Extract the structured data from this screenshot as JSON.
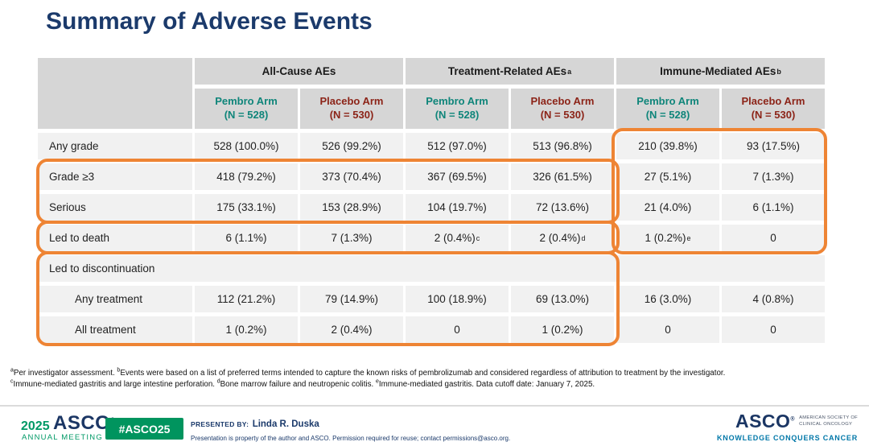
{
  "title": "Summary of Adverse Events",
  "table": {
    "groups": [
      {
        "label": "All-Cause AEs",
        "sup": ""
      },
      {
        "label": "Treatment-Related AEs",
        "sup": "a"
      },
      {
        "label": "Immune-Mediated AEs",
        "sup": "b"
      }
    ],
    "arms": [
      {
        "label": "Pembro Arm",
        "n": "(N = 528)",
        "tone": "pembro"
      },
      {
        "label": "Placebo Arm",
        "n": "(N = 530)",
        "tone": "placebo"
      },
      {
        "label": "Pembro Arm",
        "n": "(N = 528)",
        "tone": "pembro"
      },
      {
        "label": "Placebo Arm",
        "n": "(N = 530)",
        "tone": "placebo"
      },
      {
        "label": "Pembro Arm",
        "n": "(N = 528)",
        "tone": "pembro"
      },
      {
        "label": "Placebo Arm",
        "n": "(N = 530)",
        "tone": "placebo"
      }
    ],
    "rows": [
      {
        "label": "Any grade",
        "cells": [
          {
            "v": "528 (100.0%)"
          },
          {
            "v": "526 (99.2%)"
          },
          {
            "v": "512 (97.0%)"
          },
          {
            "v": "513 (96.8%)"
          },
          {
            "v": "210 (39.8%)"
          },
          {
            "v": "93 (17.5%)"
          }
        ]
      },
      {
        "label": "Grade ≥3",
        "cells": [
          {
            "v": "418 (79.2%)"
          },
          {
            "v": "373 (70.4%)"
          },
          {
            "v": "367 (69.5%)"
          },
          {
            "v": "326 (61.5%)"
          },
          {
            "v": "27 (5.1%)"
          },
          {
            "v": "7 (1.3%)"
          }
        ]
      },
      {
        "label": "Serious",
        "cells": [
          {
            "v": "175 (33.1%)"
          },
          {
            "v": "153 (28.9%)"
          },
          {
            "v": "104 (19.7%)"
          },
          {
            "v": "72 (13.6%)"
          },
          {
            "v": "21 (4.0%)"
          },
          {
            "v": "6 (1.1%)"
          }
        ]
      },
      {
        "label": "Led to death",
        "cells": [
          {
            "v": "6 (1.1%)"
          },
          {
            "v": "7 (1.3%)"
          },
          {
            "v": "2 (0.4%)",
            "sup": "c"
          },
          {
            "v": "2 (0.4%)",
            "sup": "d"
          },
          {
            "v": "1 (0.2%)",
            "sup": "e"
          },
          {
            "v": "0"
          }
        ]
      },
      {
        "label": "Led to discontinuation",
        "span": true,
        "cells": []
      },
      {
        "label": "Any treatment",
        "indent": true,
        "cells": [
          {
            "v": "112 (21.2%)"
          },
          {
            "v": "79 (14.9%)"
          },
          {
            "v": "100 (18.9%)"
          },
          {
            "v": "69 (13.0%)"
          },
          {
            "v": "16 (3.0%)"
          },
          {
            "v": "4 (0.8%)"
          }
        ]
      },
      {
        "label": "All treatment",
        "indent": true,
        "cells": [
          {
            "v": "1 (0.2%)"
          },
          {
            "v": "2 (0.4%)"
          },
          {
            "v": "0"
          },
          {
            "v": "1 (0.2%)"
          },
          {
            "v": "0"
          },
          {
            "v": "0"
          }
        ]
      }
    ]
  },
  "highlights": [
    {
      "name": "grade3-and-serious-rows"
    },
    {
      "name": "led-to-death-row"
    },
    {
      "name": "led-to-discontinuation-rows"
    },
    {
      "name": "immune-mediated-columns"
    }
  ],
  "footnotes": [
    [
      {
        "sup": "a",
        "text": "Per investigator assessment. "
      },
      {
        "sup": "b",
        "text": "Events were based on a list of preferred terms intended to capture the known risks of pembrolizumab and considered regardless of attribution to treatment by the investigator."
      }
    ],
    [
      {
        "sup": "c",
        "text": "Immune-mediated gastritis and large intestine perforation. "
      },
      {
        "sup": "d",
        "text": "Bone marrow failure and neutropenic colitis. "
      },
      {
        "sup": "e",
        "text": "Immune-mediated gastritis.  Data cutoff date: January 7, 2025."
      }
    ]
  ],
  "footer": {
    "meeting_year": "2025",
    "meeting_logo": "ASCO",
    "meeting_sub": "ANNUAL MEETING",
    "hashtag": "#ASCO25",
    "presented_by_label": "PRESENTED BY:",
    "presenter": "Linda R. Duska",
    "disclaimer": "Presentation is property of the author and ASCO. Permission required for reuse; contact permissions@asco.org.",
    "org_logo": "ASCO",
    "org_name_line1": "AMERICAN SOCIETY OF",
    "org_name_line2": "CLINICAL ONCOLOGY",
    "org_tagline": "KNOWLEDGE CONQUERS CANCER",
    "reg_mark": "®"
  },
  "colors": {
    "title_navy": "#1B3A6B",
    "pembro_teal": "#0F857A",
    "placebo_maroon": "#8C2418",
    "highlight_orange": "#EE8434",
    "header_gray": "#D6D6D6",
    "row_gray": "#F1F1F1",
    "asco_green": "#009966",
    "badge_green": "#00945E",
    "asco_navy": "#1B3664",
    "tagline_teal": "#0077A8"
  }
}
